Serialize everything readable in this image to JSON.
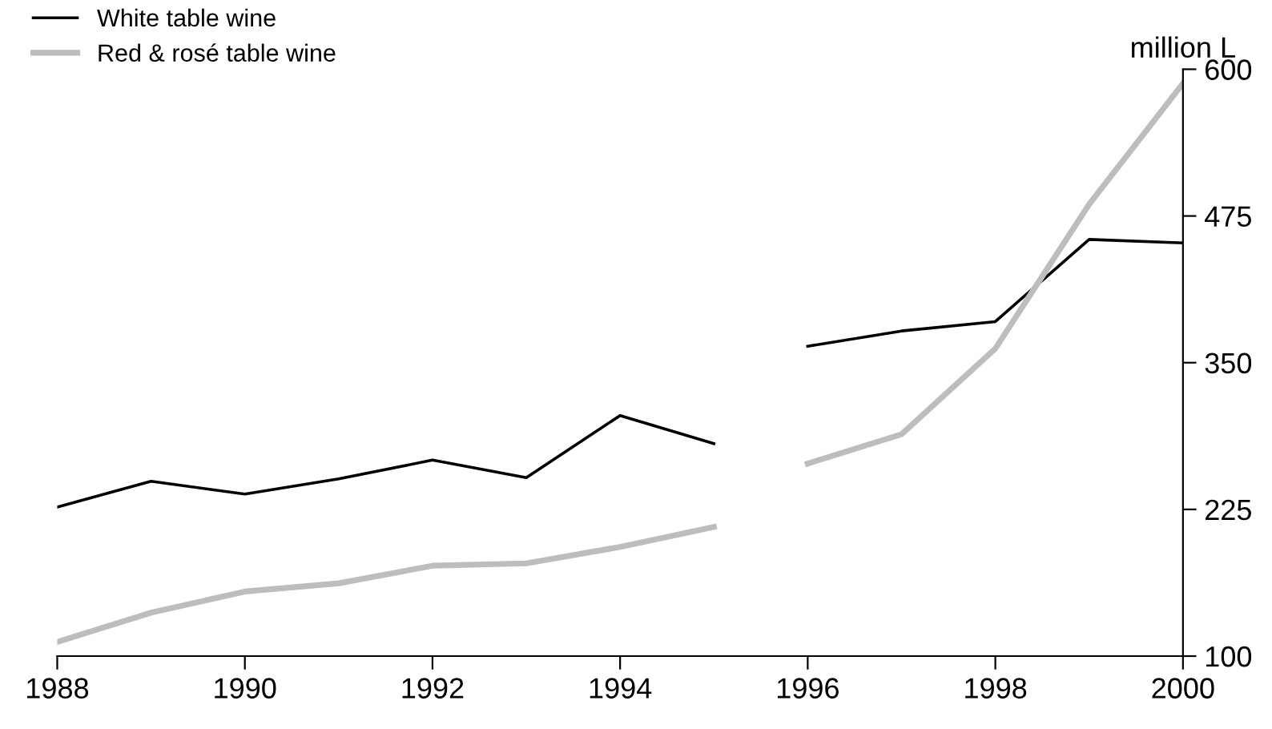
{
  "chart_data": {
    "type": "line",
    "ylabel": "million L",
    "x": [
      1988,
      1989,
      1990,
      1991,
      1992,
      1993,
      1994,
      1995,
      1995.5,
      1996,
      1997,
      1998,
      1999,
      2000
    ],
    "series": [
      {
        "name": "White table wine",
        "color": "#000000",
        "values": [
          227,
          249,
          238,
          251,
          267,
          252,
          305,
          281,
          null,
          364,
          377,
          385,
          455,
          452
        ]
      },
      {
        "name": "Red & rosé table wine",
        "color": "#bdbdbd",
        "values": [
          112,
          137,
          155,
          162,
          177,
          179,
          193,
          210,
          null,
          264,
          289,
          362,
          485,
          588
        ]
      }
    ],
    "xlim": [
      1988,
      2000
    ],
    "xticks": [
      1988,
      1990,
      1992,
      1994,
      1996,
      1998,
      2000
    ],
    "ylim": [
      100,
      600
    ],
    "yticks": [
      100,
      225,
      350,
      475,
      600
    ],
    "grid": false,
    "legend": "top left",
    "marker": "none",
    "line_style": "solid"
  }
}
